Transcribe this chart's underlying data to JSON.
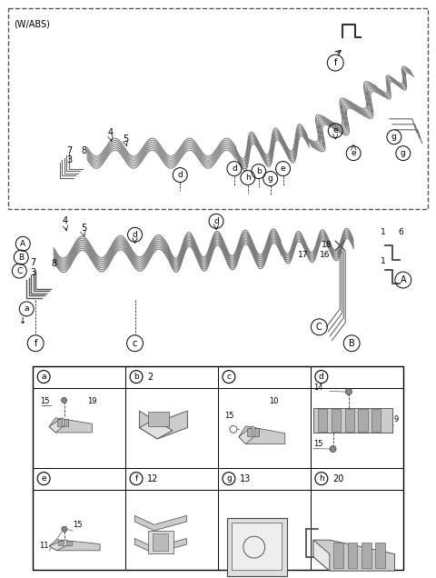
{
  "bg_color": "#ffffff",
  "line_color": "#555555",
  "wabs_label": "(W/ABS)",
  "table_cells": [
    {
      "label": "a",
      "num": ""
    },
    {
      "label": "b",
      "num": "2"
    },
    {
      "label": "c",
      "num": ""
    },
    {
      "label": "d",
      "num": ""
    },
    {
      "label": "e",
      "num": ""
    },
    {
      "label": "f",
      "num": "12"
    },
    {
      "label": "g",
      "num": "13"
    },
    {
      "label": "h",
      "num": "20"
    }
  ],
  "pipe_color": "#888888",
  "label_color": "#222222"
}
